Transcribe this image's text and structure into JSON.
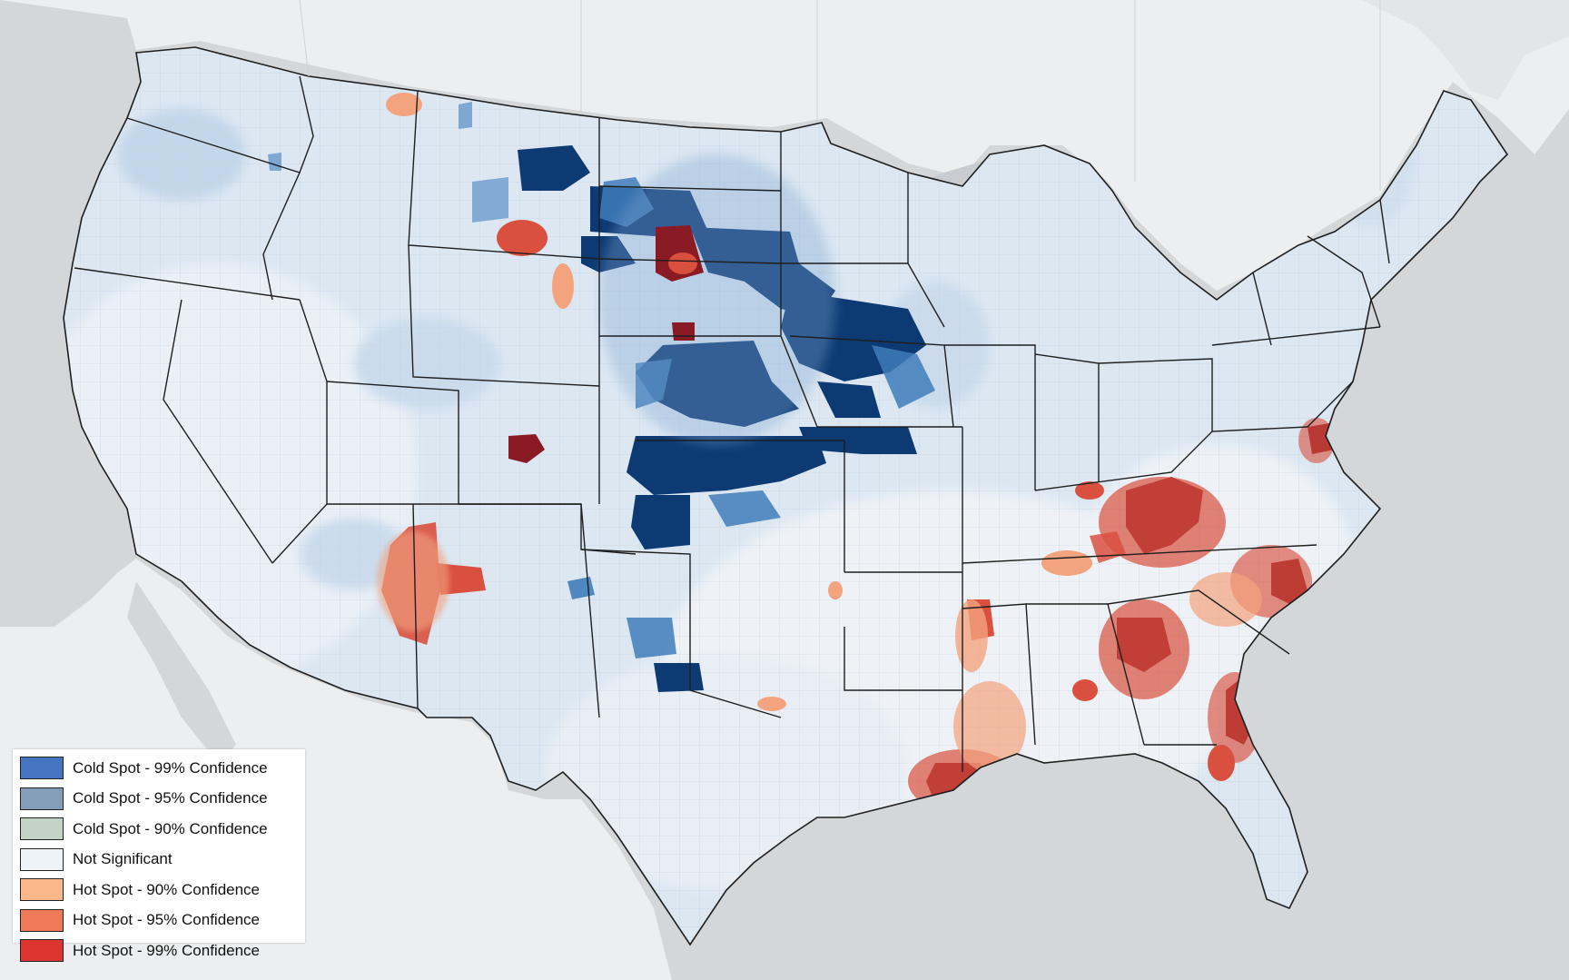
{
  "legend": {
    "items": [
      {
        "label": "Cold Spot - 99% Confidence",
        "color": "#4574c0",
        "class": "cold-99"
      },
      {
        "label": "Cold Spot - 95% Confidence",
        "color": "#849eb9",
        "class": "cold-95"
      },
      {
        "label": "Cold Spot - 90% Confidence",
        "color": "#c3d3c5",
        "class": "cold-90"
      },
      {
        "label": "Not Significant",
        "color": "#eef3f8",
        "class": "not-significant"
      },
      {
        "label": "Hot Spot - 90% Confidence",
        "color": "#fcb78a",
        "class": "hot-90"
      },
      {
        "label": "Hot Spot - 95% Confidence",
        "color": "#ef7a59",
        "class": "hot-95"
      },
      {
        "label": "Hot Spot - 99% Confidence",
        "color": "#dd3630",
        "class": "hot-99"
      }
    ]
  },
  "colors": {
    "ocean": "#d4d7da",
    "land_outside": "#eceeef",
    "us_base": "#dde8f3",
    "state_border": "#1e1e1e",
    "county_line": "#c5d2de",
    "cold_99_map": "#0d3a73",
    "cold_95_map": "#3f7dba",
    "cold_soft_map": "#a9c4e0",
    "hot_99_map": "#8a1a24",
    "hot_95_map": "#d9503f",
    "hot_90_map": "#f3a37e"
  }
}
